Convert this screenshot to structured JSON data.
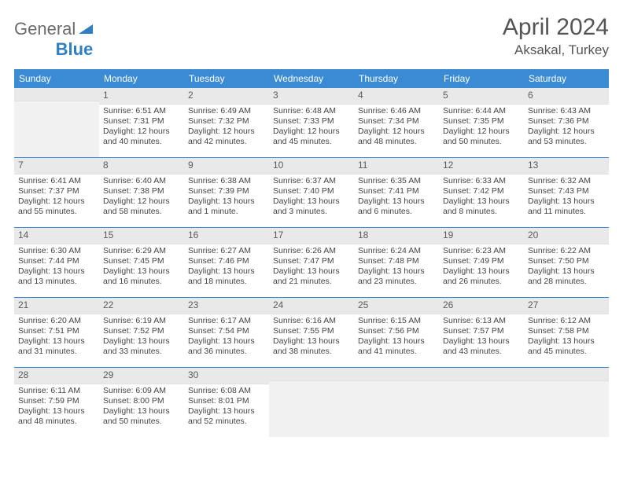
{
  "brand": {
    "name": "General",
    "accent": "Blue",
    "accent_color": "#2f7fc2"
  },
  "title": "April 2024",
  "location": "Aksakal, Turkey",
  "colors": {
    "header_bg": "#3b8bd4",
    "header_text": "#ffffff",
    "daynum_bg": "#e9e9e9",
    "daynum_text": "#5a5a5a",
    "divider": "#3b8bd4",
    "body_text": "#444444",
    "empty_bg": "#f1f1f1"
  },
  "weekdays": [
    "Sunday",
    "Monday",
    "Tuesday",
    "Wednesday",
    "Thursday",
    "Friday",
    "Saturday"
  ],
  "weeks": [
    [
      null,
      {
        "n": "1",
        "sr": "Sunrise: 6:51 AM",
        "ss": "Sunset: 7:31 PM",
        "d1": "Daylight: 12 hours",
        "d2": "and 40 minutes."
      },
      {
        "n": "2",
        "sr": "Sunrise: 6:49 AM",
        "ss": "Sunset: 7:32 PM",
        "d1": "Daylight: 12 hours",
        "d2": "and 42 minutes."
      },
      {
        "n": "3",
        "sr": "Sunrise: 6:48 AM",
        "ss": "Sunset: 7:33 PM",
        "d1": "Daylight: 12 hours",
        "d2": "and 45 minutes."
      },
      {
        "n": "4",
        "sr": "Sunrise: 6:46 AM",
        "ss": "Sunset: 7:34 PM",
        "d1": "Daylight: 12 hours",
        "d2": "and 48 minutes."
      },
      {
        "n": "5",
        "sr": "Sunrise: 6:44 AM",
        "ss": "Sunset: 7:35 PM",
        "d1": "Daylight: 12 hours",
        "d2": "and 50 minutes."
      },
      {
        "n": "6",
        "sr": "Sunrise: 6:43 AM",
        "ss": "Sunset: 7:36 PM",
        "d1": "Daylight: 12 hours",
        "d2": "and 53 minutes."
      }
    ],
    [
      {
        "n": "7",
        "sr": "Sunrise: 6:41 AM",
        "ss": "Sunset: 7:37 PM",
        "d1": "Daylight: 12 hours",
        "d2": "and 55 minutes."
      },
      {
        "n": "8",
        "sr": "Sunrise: 6:40 AM",
        "ss": "Sunset: 7:38 PM",
        "d1": "Daylight: 12 hours",
        "d2": "and 58 minutes."
      },
      {
        "n": "9",
        "sr": "Sunrise: 6:38 AM",
        "ss": "Sunset: 7:39 PM",
        "d1": "Daylight: 13 hours",
        "d2": "and 1 minute."
      },
      {
        "n": "10",
        "sr": "Sunrise: 6:37 AM",
        "ss": "Sunset: 7:40 PM",
        "d1": "Daylight: 13 hours",
        "d2": "and 3 minutes."
      },
      {
        "n": "11",
        "sr": "Sunrise: 6:35 AM",
        "ss": "Sunset: 7:41 PM",
        "d1": "Daylight: 13 hours",
        "d2": "and 6 minutes."
      },
      {
        "n": "12",
        "sr": "Sunrise: 6:33 AM",
        "ss": "Sunset: 7:42 PM",
        "d1": "Daylight: 13 hours",
        "d2": "and 8 minutes."
      },
      {
        "n": "13",
        "sr": "Sunrise: 6:32 AM",
        "ss": "Sunset: 7:43 PM",
        "d1": "Daylight: 13 hours",
        "d2": "and 11 minutes."
      }
    ],
    [
      {
        "n": "14",
        "sr": "Sunrise: 6:30 AM",
        "ss": "Sunset: 7:44 PM",
        "d1": "Daylight: 13 hours",
        "d2": "and 13 minutes."
      },
      {
        "n": "15",
        "sr": "Sunrise: 6:29 AM",
        "ss": "Sunset: 7:45 PM",
        "d1": "Daylight: 13 hours",
        "d2": "and 16 minutes."
      },
      {
        "n": "16",
        "sr": "Sunrise: 6:27 AM",
        "ss": "Sunset: 7:46 PM",
        "d1": "Daylight: 13 hours",
        "d2": "and 18 minutes."
      },
      {
        "n": "17",
        "sr": "Sunrise: 6:26 AM",
        "ss": "Sunset: 7:47 PM",
        "d1": "Daylight: 13 hours",
        "d2": "and 21 minutes."
      },
      {
        "n": "18",
        "sr": "Sunrise: 6:24 AM",
        "ss": "Sunset: 7:48 PM",
        "d1": "Daylight: 13 hours",
        "d2": "and 23 minutes."
      },
      {
        "n": "19",
        "sr": "Sunrise: 6:23 AM",
        "ss": "Sunset: 7:49 PM",
        "d1": "Daylight: 13 hours",
        "d2": "and 26 minutes."
      },
      {
        "n": "20",
        "sr": "Sunrise: 6:22 AM",
        "ss": "Sunset: 7:50 PM",
        "d1": "Daylight: 13 hours",
        "d2": "and 28 minutes."
      }
    ],
    [
      {
        "n": "21",
        "sr": "Sunrise: 6:20 AM",
        "ss": "Sunset: 7:51 PM",
        "d1": "Daylight: 13 hours",
        "d2": "and 31 minutes."
      },
      {
        "n": "22",
        "sr": "Sunrise: 6:19 AM",
        "ss": "Sunset: 7:52 PM",
        "d1": "Daylight: 13 hours",
        "d2": "and 33 minutes."
      },
      {
        "n": "23",
        "sr": "Sunrise: 6:17 AM",
        "ss": "Sunset: 7:54 PM",
        "d1": "Daylight: 13 hours",
        "d2": "and 36 minutes."
      },
      {
        "n": "24",
        "sr": "Sunrise: 6:16 AM",
        "ss": "Sunset: 7:55 PM",
        "d1": "Daylight: 13 hours",
        "d2": "and 38 minutes."
      },
      {
        "n": "25",
        "sr": "Sunrise: 6:15 AM",
        "ss": "Sunset: 7:56 PM",
        "d1": "Daylight: 13 hours",
        "d2": "and 41 minutes."
      },
      {
        "n": "26",
        "sr": "Sunrise: 6:13 AM",
        "ss": "Sunset: 7:57 PM",
        "d1": "Daylight: 13 hours",
        "d2": "and 43 minutes."
      },
      {
        "n": "27",
        "sr": "Sunrise: 6:12 AM",
        "ss": "Sunset: 7:58 PM",
        "d1": "Daylight: 13 hours",
        "d2": "and 45 minutes."
      }
    ],
    [
      {
        "n": "28",
        "sr": "Sunrise: 6:11 AM",
        "ss": "Sunset: 7:59 PM",
        "d1": "Daylight: 13 hours",
        "d2": "and 48 minutes."
      },
      {
        "n": "29",
        "sr": "Sunrise: 6:09 AM",
        "ss": "Sunset: 8:00 PM",
        "d1": "Daylight: 13 hours",
        "d2": "and 50 minutes."
      },
      {
        "n": "30",
        "sr": "Sunrise: 6:08 AM",
        "ss": "Sunset: 8:01 PM",
        "d1": "Daylight: 13 hours",
        "d2": "and 52 minutes."
      },
      null,
      null,
      null,
      null
    ]
  ]
}
